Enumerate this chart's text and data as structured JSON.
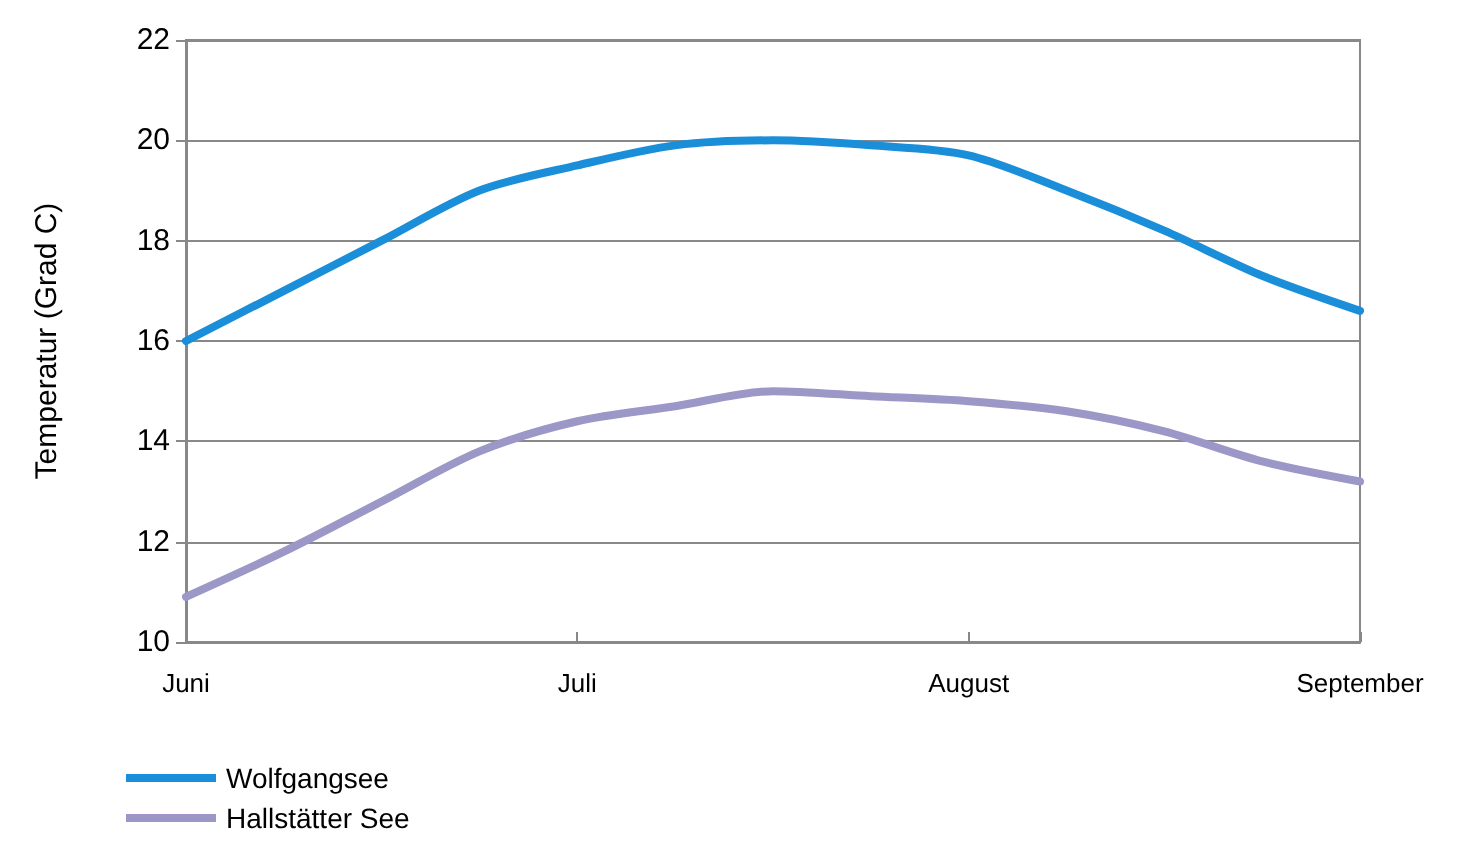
{
  "chart_data": {
    "type": "line",
    "ylabel": "Temperatur (Grad C)",
    "categories": [
      "Juni",
      null,
      null,
      null,
      "Juli",
      null,
      null,
      null,
      "August",
      null,
      null,
      null,
      "September"
    ],
    "ylim": [
      10,
      22
    ],
    "yticks": [
      10,
      12,
      14,
      16,
      18,
      20,
      22
    ],
    "grid": "y",
    "legend": "bottom left",
    "marker": "none",
    "line_style": "solid",
    "series": [
      {
        "name": "Wolfgangsee",
        "color": "#1a8ed8",
        "values": [
          16.0,
          17.0,
          18.0,
          19.0,
          19.5,
          19.9,
          20.0,
          19.9,
          19.7,
          19.0,
          18.2,
          17.3,
          16.6
        ]
      },
      {
        "name": "Hallstätter See",
        "color": "#9b97c6",
        "values": [
          10.9,
          11.8,
          12.8,
          13.8,
          14.4,
          14.7,
          15.0,
          14.9,
          14.8,
          14.6,
          14.2,
          13.6,
          13.2
        ]
      }
    ]
  }
}
